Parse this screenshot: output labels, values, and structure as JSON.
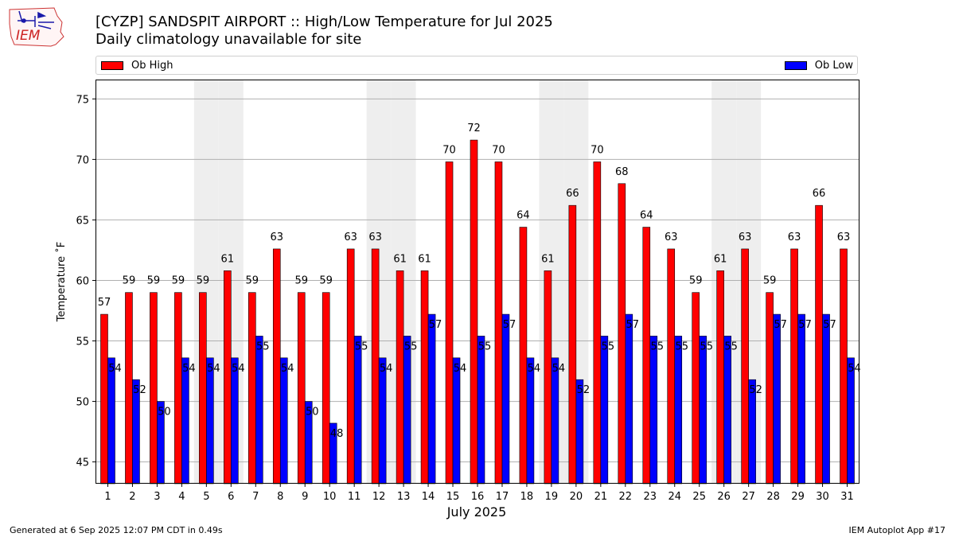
{
  "header": {
    "title_line1": "[CYZP] SANDSPIT AIRPORT :: High/Low Temperature for Jul 2025",
    "title_line2": "Daily climatology unavailable for site"
  },
  "logo": {
    "text": "IEM",
    "icon": "iem-iowa-map-logo-icon"
  },
  "footer": {
    "generated": "Generated at 6 Sep 2025 12:07 PM CDT in 0.49s",
    "app": "IEM Autoplot App #17"
  },
  "colors": {
    "high": "#ff0000",
    "low": "#0000ff",
    "weekend_band": "#eeeeee",
    "grid": "#b0b0b0"
  },
  "chart_data": {
    "type": "bar",
    "title": "[CYZP] SANDSPIT AIRPORT :: High/Low Temperature for Jul 2025",
    "subtitle": "Daily climatology unavailable for site",
    "xlabel": "July 2025",
    "ylabel": "Temperature ˚F",
    "ylim": [
      43.2,
      76.6
    ],
    "yticks": [
      45,
      50,
      55,
      60,
      65,
      70,
      75
    ],
    "grid": true,
    "legend_placement": "top",
    "categories": [
      "1",
      "2",
      "3",
      "4",
      "5",
      "6",
      "7",
      "8",
      "9",
      "10",
      "11",
      "12",
      "13",
      "14",
      "15",
      "16",
      "17",
      "18",
      "19",
      "20",
      "21",
      "22",
      "23",
      "24",
      "25",
      "26",
      "27",
      "28",
      "29",
      "30",
      "31"
    ],
    "shaded_days": [
      5,
      6,
      12,
      13,
      19,
      20,
      26,
      27
    ],
    "series": [
      {
        "name": "Ob High",
        "values": [
          57.2,
          59.0,
          59.0,
          59.0,
          59.0,
          60.8,
          59.0,
          62.6,
          59.0,
          59.0,
          62.6,
          62.6,
          60.8,
          60.8,
          69.8,
          71.6,
          69.8,
          64.4,
          60.8,
          66.2,
          69.8,
          68.0,
          64.4,
          62.6,
          59.0,
          60.8,
          62.6,
          59.0,
          62.6,
          66.2,
          62.6
        ],
        "labels": [
          "57",
          "59",
          "59",
          "59",
          "59",
          "61",
          "59",
          "63",
          "59",
          "59",
          "63",
          "63",
          "61",
          "61",
          "70",
          "72",
          "70",
          "64",
          "61",
          "66",
          "70",
          "68",
          "64",
          "63",
          "59",
          "61",
          "63",
          "59",
          "63",
          "66",
          "63"
        ]
      },
      {
        "name": "Ob Low",
        "values": [
          53.6,
          51.8,
          50.0,
          53.6,
          53.6,
          53.6,
          55.4,
          53.6,
          50.0,
          48.2,
          55.4,
          53.6,
          55.4,
          57.2,
          53.6,
          55.4,
          57.2,
          53.6,
          53.6,
          51.8,
          55.4,
          57.2,
          55.4,
          55.4,
          55.4,
          55.4,
          51.8,
          57.2,
          57.2,
          57.2,
          53.6
        ],
        "labels": [
          "54",
          "52",
          "50",
          "54",
          "54",
          "54",
          "55",
          "54",
          "50",
          "48",
          "55",
          "54",
          "55",
          "57",
          "54",
          "55",
          "57",
          "54",
          "54",
          "52",
          "55",
          "57",
          "55",
          "55",
          "55",
          "55",
          "52",
          "57",
          "57",
          "57",
          "54"
        ]
      }
    ]
  }
}
